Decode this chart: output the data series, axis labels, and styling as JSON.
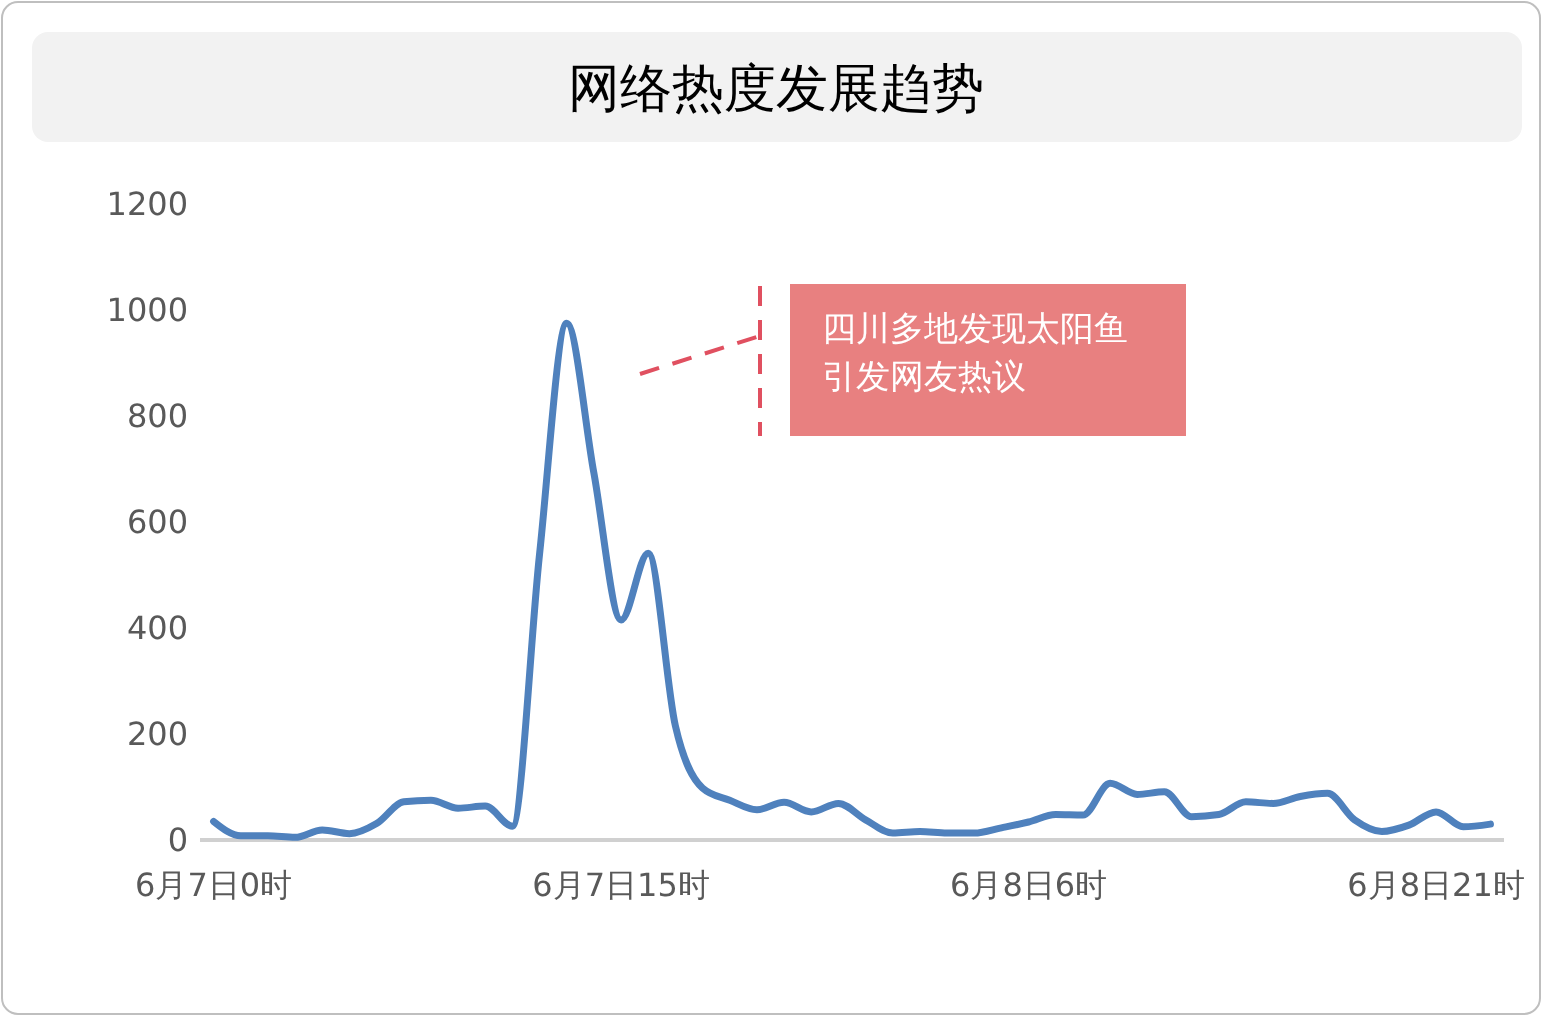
{
  "chart_data": {
    "type": "line",
    "title": "网络热度发展趋势",
    "categories": [
      "6月7日0时",
      null,
      null,
      null,
      null,
      null,
      null,
      null,
      null,
      null,
      null,
      null,
      null,
      null,
      null,
      "6月7日15时",
      null,
      null,
      null,
      null,
      null,
      null,
      null,
      null,
      null,
      null,
      null,
      null,
      null,
      null,
      "6月8日6时",
      null,
      null,
      null,
      null,
      null,
      null,
      null,
      null,
      null,
      null,
      null,
      null,
      null,
      null,
      "6月8日21时",
      null,
      null
    ],
    "series": [
      {
        "color": "#4f81bd",
        "values": [
          35,
          8,
          8,
          5,
          19,
          12,
          31,
          72,
          75,
          60,
          64,
          26,
          540,
          975,
          692,
          415,
          541,
          215,
          98,
          75,
          57,
          71,
          53,
          69,
          38,
          13,
          16,
          13,
          13,
          23,
          34,
          48,
          47,
          107,
          86,
          91,
          44,
          48,
          72,
          69,
          82,
          88,
          38,
          16,
          28,
          53,
          25,
          30
        ]
      }
    ],
    "ylim": [
      0,
      1200
    ],
    "yticks": [
      0,
      200,
      400,
      600,
      800,
      1000,
      1200
    ],
    "annotations": [
      "四川多地发现太阳鱼引发网友热议"
    ],
    "grid": false,
    "marker": "none",
    "line_style": "solid"
  }
}
